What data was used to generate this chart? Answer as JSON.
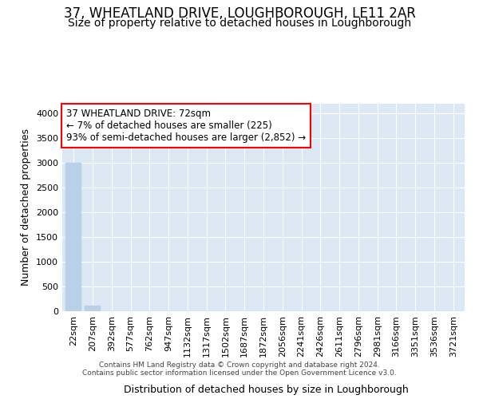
{
  "title": "37, WHEATLAND DRIVE, LOUGHBOROUGH, LE11 2AR",
  "subtitle": "Size of property relative to detached houses in Loughborough",
  "xlabel": "Distribution of detached houses by size in Loughborough",
  "ylabel": "Number of detached properties",
  "footer_line1": "Contains HM Land Registry data © Crown copyright and database right 2024.",
  "footer_line2": "Contains public sector information licensed under the Open Government Licence v3.0.",
  "bar_labels": [
    "22sqm",
    "207sqm",
    "392sqm",
    "577sqm",
    "762sqm",
    "947sqm",
    "1132sqm",
    "1317sqm",
    "1502sqm",
    "1687sqm",
    "1872sqm",
    "2056sqm",
    "2241sqm",
    "2426sqm",
    "2611sqm",
    "2796sqm",
    "2981sqm",
    "3166sqm",
    "3351sqm",
    "3536sqm",
    "3721sqm"
  ],
  "bar_values": [
    3000,
    110,
    5,
    2,
    1,
    1,
    0,
    0,
    0,
    0,
    0,
    0,
    0,
    0,
    0,
    0,
    0,
    0,
    0,
    0,
    0
  ],
  "bar_color": "#b8d0e8",
  "annotation_line1": "37 WHEATLAND DRIVE: 72sqm",
  "annotation_line2": "← 7% of detached houses are smaller (225)",
  "annotation_line3": "93% of semi-detached houses are larger (2,852) →",
  "ylim": [
    0,
    4200
  ],
  "yticks": [
    0,
    500,
    1000,
    1500,
    2000,
    2500,
    3000,
    3500,
    4000
  ],
  "axes_bg_color": "#dce9f5",
  "grid_color": "#ffffff",
  "title_fontsize": 12,
  "subtitle_fontsize": 10,
  "ylabel_fontsize": 9,
  "xlabel_fontsize": 9,
  "tick_fontsize": 8,
  "annot_fontsize": 8.5,
  "footer_fontsize": 6.5
}
